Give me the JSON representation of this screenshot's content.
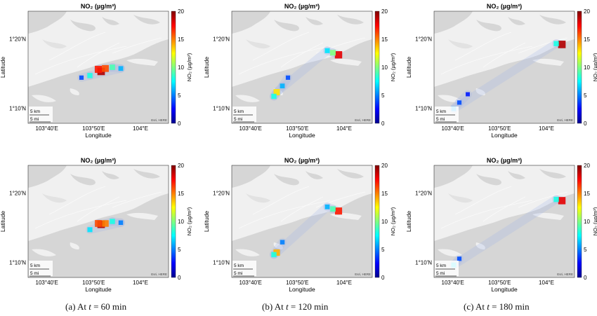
{
  "chart_data": {
    "type": "heatmap",
    "panel_title": "NO₂ (µg/m³)",
    "colorbar_label": "NO₂ (µg/m³)",
    "colorbar": {
      "min": 0,
      "max": 20,
      "ticks": [
        "0",
        "5",
        "10",
        "15",
        "20"
      ],
      "colormap": "jet"
    },
    "xlabel": "Longitude",
    "ylabel": "Latitude",
    "x_ticks": [
      "103°40'E",
      "103°50'E",
      "104°E"
    ],
    "y_ticks": [
      "1°20'N",
      "1°10'N"
    ],
    "scale_bar": {
      "km": "5 km",
      "mi": "5 mi"
    },
    "attribution": "Esri, HERE",
    "captions": [
      {
        "prefix": "(a)  At ",
        "var": "t",
        "value": " = 60 min"
      },
      {
        "prefix": "(b)  At ",
        "var": "t",
        "value": " = 120 min"
      },
      {
        "prefix": "(c)  At ",
        "var": "t",
        "value": " = 180 min"
      }
    ],
    "panels": [
      {
        "id": "a-top",
        "time_min": 60,
        "hotspots": [
          {
            "lon": 103.86,
            "lat": 1.255,
            "no2": 19
          },
          {
            "lon": 103.85,
            "lat": 1.26,
            "no2": 17
          },
          {
            "lon": 103.875,
            "lat": 1.262,
            "no2": 16
          },
          {
            "lon": 103.9,
            "lat": 1.265,
            "no2": 9
          },
          {
            "lon": 103.93,
            "lat": 1.262,
            "no2": 6
          },
          {
            "lon": 103.82,
            "lat": 1.245,
            "no2": 8
          },
          {
            "lon": 103.79,
            "lat": 1.24,
            "no2": 4
          }
        ]
      },
      {
        "id": "b-top",
        "time_min": 120,
        "hotspots": [
          {
            "lon": 103.98,
            "lat": 1.295,
            "no2": 18
          },
          {
            "lon": 103.96,
            "lat": 1.3,
            "no2": 10
          },
          {
            "lon": 103.94,
            "lat": 1.305,
            "no2": 7
          },
          {
            "lon": 103.76,
            "lat": 1.205,
            "no2": 13
          },
          {
            "lon": 103.75,
            "lat": 1.195,
            "no2": 8
          },
          {
            "lon": 103.78,
            "lat": 1.22,
            "no2": 6
          },
          {
            "lon": 103.8,
            "lat": 1.24,
            "no2": 4
          }
        ]
      },
      {
        "id": "c-top",
        "time_min": 180,
        "hotspots": [
          {
            "lon": 104.055,
            "lat": 1.32,
            "no2": 19
          },
          {
            "lon": 104.035,
            "lat": 1.322,
            "no2": 8
          },
          {
            "lon": 103.67,
            "lat": 1.165,
            "no2": 6
          },
          {
            "lon": 103.69,
            "lat": 1.18,
            "no2": 4
          },
          {
            "lon": 103.72,
            "lat": 1.2,
            "no2": 3
          }
        ]
      },
      {
        "id": "a-bottom",
        "time_min": 60,
        "hotspots": [
          {
            "lon": 103.86,
            "lat": 1.258,
            "no2": 19
          },
          {
            "lon": 103.85,
            "lat": 1.26,
            "no2": 16
          },
          {
            "lon": 103.875,
            "lat": 1.26,
            "no2": 15
          },
          {
            "lon": 103.9,
            "lat": 1.265,
            "no2": 8
          },
          {
            "lon": 103.93,
            "lat": 1.262,
            "no2": 5
          },
          {
            "lon": 103.82,
            "lat": 1.245,
            "no2": 7
          }
        ]
      },
      {
        "id": "b-bottom",
        "time_min": 120,
        "hotspots": [
          {
            "lon": 103.98,
            "lat": 1.29,
            "no2": 17
          },
          {
            "lon": 103.96,
            "lat": 1.295,
            "no2": 9
          },
          {
            "lon": 103.94,
            "lat": 1.3,
            "no2": 6
          },
          {
            "lon": 103.76,
            "lat": 1.19,
            "no2": 14
          },
          {
            "lon": 103.75,
            "lat": 1.185,
            "no2": 8
          },
          {
            "lon": 103.78,
            "lat": 1.215,
            "no2": 5
          }
        ]
      },
      {
        "id": "c-bottom",
        "time_min": 180,
        "hotspots": [
          {
            "lon": 104.055,
            "lat": 1.315,
            "no2": 18
          },
          {
            "lon": 104.035,
            "lat": 1.318,
            "no2": 8
          },
          {
            "lon": 103.67,
            "lat": 1.16,
            "no2": 7
          },
          {
            "lon": 103.69,
            "lat": 1.175,
            "no2": 4
          }
        ]
      }
    ]
  }
}
